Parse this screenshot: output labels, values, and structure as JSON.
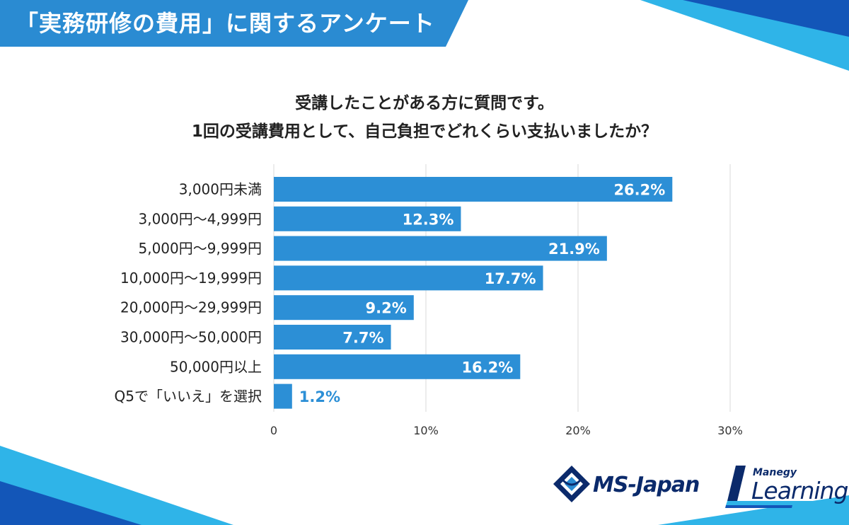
{
  "header": {
    "title": "「実務研修の費用」に関するアンケート"
  },
  "question": {
    "line1": "受講したことがある方に質問です。",
    "line2": "1回の受講費用として、自己負担でどれくらい支払いましたか？"
  },
  "chart_data": {
    "type": "bar",
    "orientation": "horizontal",
    "categories": [
      "3,000円未満",
      "3,000円～4,999円",
      "5,000円～9,999円",
      "10,000円～19,999円",
      "20,000円～29,999円",
      "30,000円～50,000円",
      "50,000円以上",
      "Q5で「いいえ」を選択"
    ],
    "values": [
      26.2,
      12.3,
      21.9,
      17.7,
      9.2,
      7.7,
      16.2,
      1.2
    ],
    "value_labels": [
      "26.2%",
      "12.3%",
      "21.9%",
      "17.7%",
      "9.2%",
      "7.7%",
      "16.2%",
      "1.2%"
    ],
    "xlim": [
      0,
      30
    ],
    "xticks": [
      0,
      10,
      20,
      30
    ],
    "xtick_labels": [
      "0",
      "10%",
      "20%",
      "30%"
    ],
    "grid": true,
    "bar_color": "#2c8fd6"
  },
  "logos": {
    "ms_japan": "MS-Japan",
    "manegy_small": "Manegy",
    "manegy_big": "Learning"
  },
  "colors": {
    "banner": "#2a8bd2",
    "accent_dark": "#1356b8",
    "accent_light": "#2fb4e8",
    "logo_navy": "#0b2a6b"
  }
}
